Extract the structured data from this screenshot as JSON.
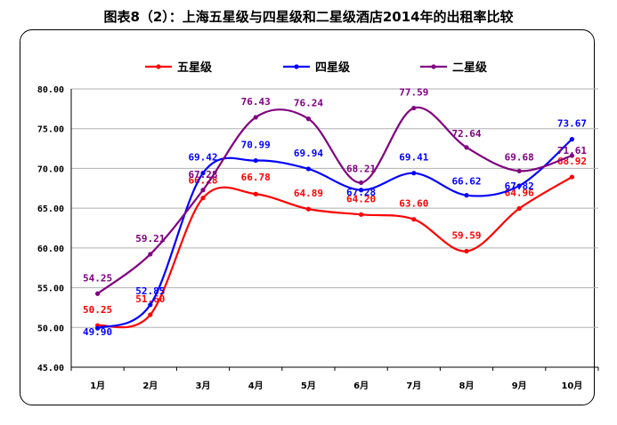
{
  "chart_data": {
    "type": "line",
    "title": "图表8（2）：上海五星级与四星级和二星级酒店2014年的出租率比较",
    "categories": [
      "1月",
      "2月",
      "3月",
      "4月",
      "5月",
      "6月",
      "7月",
      "8月",
      "9月",
      "10月"
    ],
    "ylim": [
      45,
      80
    ],
    "yticks": [
      "45.00",
      "50.00",
      "55.00",
      "60.00",
      "65.00",
      "70.00",
      "75.00",
      "80.00"
    ],
    "legend_position": "top",
    "grid": true,
    "series": [
      {
        "name": "五星级",
        "color": "#ff0000",
        "values": [
          50.25,
          51.6,
          66.28,
          66.78,
          64.89,
          64.2,
          63.6,
          59.59,
          64.96,
          68.92
        ],
        "labels": [
          "50.25",
          "51.60",
          "66.28",
          "66.78",
          "64.89",
          "64.20",
          "63.60",
          "59.59",
          "64.96",
          "68.92"
        ]
      },
      {
        "name": "四星级",
        "color": "#0000ff",
        "values": [
          49.9,
          52.85,
          69.42,
          70.99,
          69.94,
          67.28,
          69.41,
          66.62,
          67.82,
          73.67
        ],
        "labels": [
          "49.90",
          "52.85",
          "69.42",
          "70.99",
          "69.94",
          "67.28",
          "69.41",
          "66.62",
          "67.82",
          "73.67"
        ]
      },
      {
        "name": "二星级",
        "color": "#800080",
        "values": [
          54.25,
          59.21,
          67.28,
          76.43,
          76.24,
          68.21,
          77.59,
          72.64,
          69.68,
          71.61
        ],
        "labels": [
          "54.25",
          "59.21",
          "67.28",
          "76.43",
          "76.24",
          "68.21",
          "77.59",
          "72.64",
          "69.68",
          "71.61"
        ]
      }
    ]
  }
}
